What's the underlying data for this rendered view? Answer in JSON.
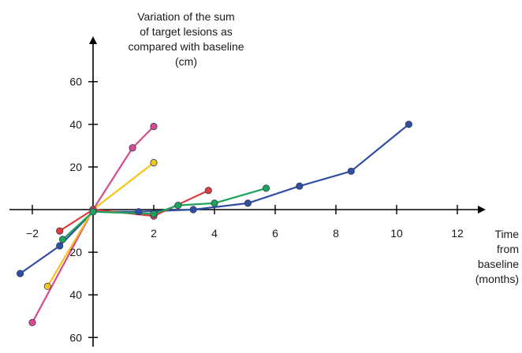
{
  "chart_data": {
    "type": "line",
    "title": "",
    "ylabel_lines": [
      "Variation of the sum",
      "of target lesions as",
      "compared with baseline",
      "(cm)"
    ],
    "xlabel_lines": [
      "Time",
      "from",
      "baseline",
      "(months)"
    ],
    "xlim": [
      -2.7,
      13.2
    ],
    "ylim": [
      -68,
      78
    ],
    "x_ticks": [
      {
        "value": -2,
        "label": "−2"
      },
      {
        "value": 2,
        "label": "2"
      },
      {
        "value": 4,
        "label": "4"
      },
      {
        "value": 6,
        "label": "6"
      },
      {
        "value": 8,
        "label": "8"
      },
      {
        "value": 10,
        "label": "10"
      },
      {
        "value": 12,
        "label": "12"
      }
    ],
    "y_ticks": [
      {
        "value": 60,
        "label": "60"
      },
      {
        "value": 40,
        "label": "40"
      },
      {
        "value": 20,
        "label": "20"
      },
      {
        "value": -20,
        "label": "20"
      },
      {
        "value": -40,
        "label": "40"
      },
      {
        "value": -60,
        "label": "60"
      }
    ],
    "grid": false,
    "series": [
      {
        "color": "#2E4FA2",
        "points": [
          [
            -2.4,
            -30
          ],
          [
            -1.1,
            -17
          ],
          [
            0,
            -1
          ],
          [
            1.5,
            -1
          ],
          [
            3.3,
            0
          ],
          [
            5.1,
            3
          ],
          [
            6.8,
            11
          ],
          [
            8.5,
            18
          ],
          [
            10.4,
            40
          ]
        ]
      },
      {
        "color": "#D94A8C",
        "points": [
          [
            -2.0,
            -53
          ],
          [
            0,
            0
          ],
          [
            1.3,
            29
          ],
          [
            2.0,
            39
          ]
        ]
      },
      {
        "color": "#F5C518",
        "points": [
          [
            -1.5,
            -36
          ],
          [
            0,
            0
          ],
          [
            2.0,
            22
          ]
        ]
      },
      {
        "color": "#E23B3B",
        "points": [
          [
            -1.1,
            -10
          ],
          [
            0,
            0
          ],
          [
            2.0,
            -3
          ],
          [
            3.8,
            9
          ]
        ]
      },
      {
        "color": "#1BA35B",
        "points": [
          [
            -1.0,
            -14
          ],
          [
            0,
            -1
          ],
          [
            2.0,
            -2
          ],
          [
            2.8,
            2
          ],
          [
            4.0,
            3
          ],
          [
            5.7,
            10
          ]
        ]
      }
    ]
  }
}
